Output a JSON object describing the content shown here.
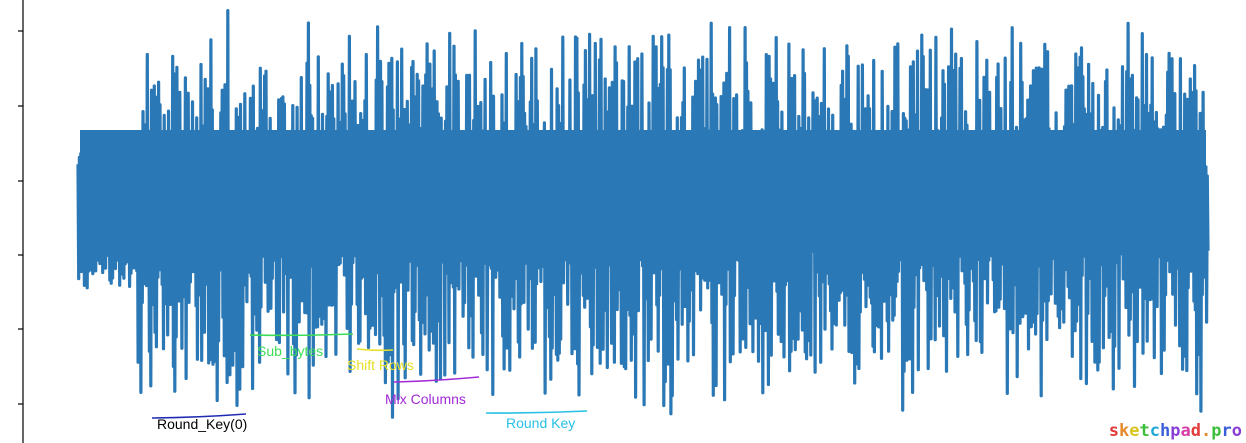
{
  "chart_data": {
    "type": "line",
    "title": "",
    "xlabel": "",
    "ylabel": "",
    "series_color": "#2a78b5",
    "y_ticks_visible": 6,
    "ylim": [
      -3.3,
      2.95
    ],
    "xlim": [
      0,
      1000
    ],
    "grid": false,
    "legend": "none",
    "annotations": [
      {
        "text": "Sub_bytes",
        "color": "#3ddc58",
        "x_range": [
          153,
          245
        ]
      },
      {
        "text": "Shift Rows",
        "color": "#e6e02a",
        "x_range": [
          247,
          282
        ]
      },
      {
        "text": "Mix Columns",
        "color": "#a22ad6",
        "x_range": [
          283,
          355
        ]
      },
      {
        "text": "Round Key",
        "color": "#27c1e6",
        "x_range": [
          360,
          450
        ]
      },
      {
        "text": "Round_Key(0)",
        "color": "#1f2bb3",
        "x_range": [
          66,
          150
        ]
      }
    ]
  },
  "watermark": {
    "text": "sketchpad.pro",
    "colors": [
      "#e23b3b",
      "#e8892a",
      "#d8c61f",
      "#3cbf3c",
      "#23a8d6",
      "#3a5fd9",
      "#8a3ed6",
      "#d63ea8",
      "#e23b3b",
      "#e8892a",
      "#3cbf3c",
      "#3a5fd9",
      "#8a3ed6"
    ]
  }
}
